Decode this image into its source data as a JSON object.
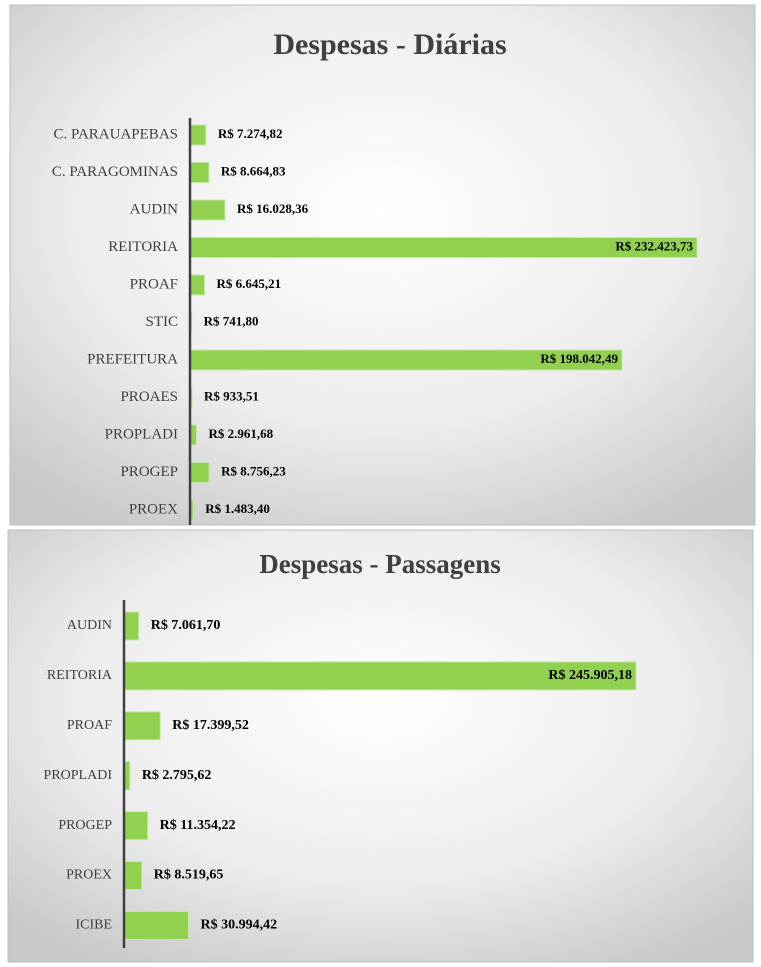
{
  "chart_data": [
    {
      "type": "bar",
      "orientation": "horizontal",
      "title": "Despesas - Diárias",
      "color": "#92d050",
      "categories": [
        "C. PARAUAPEBAS",
        "C. PARAGOMINAS",
        "AUDIN",
        "REITORIA",
        "PROAF",
        "STIC",
        "PREFEITURA",
        "PROAES",
        "PROPLADI",
        "PROGEP",
        "PROEX"
      ],
      "values": [
        7274.82,
        8664.83,
        16028.36,
        232423.73,
        6645.21,
        741.8,
        198042.49,
        933.51,
        2961.68,
        8756.23,
        1483.4
      ],
      "value_labels": [
        "R$ 7.274,82",
        "R$ 8.664,83",
        "R$ 16.028,36",
        "R$ 232.423,73",
        "R$ 6.645,21",
        "R$ 741,80",
        "R$ 198.042,49",
        "R$ 933,51",
        "R$ 2.961,68",
        "R$ 8.756,23",
        "R$ 1.483,40"
      ]
    },
    {
      "type": "bar",
      "orientation": "horizontal",
      "title": "Despesas - Passagens",
      "color": "#92d050",
      "categories": [
        "AUDIN",
        "REITORIA",
        "PROAF",
        "PROPLADI",
        "PROGEP",
        "PROEX",
        "ICIBE"
      ],
      "values": [
        7061.7,
        245905.18,
        17399.52,
        2795.62,
        11354.22,
        8519.65,
        30994.42
      ],
      "value_labels": [
        "R$ 7.061,70",
        "R$ 245.905,18",
        "R$ 17.399,52",
        "R$ 2.795,62",
        "R$ 11.354,22",
        "R$ 8.519,65",
        "R$ 30.994,42"
      ]
    }
  ]
}
